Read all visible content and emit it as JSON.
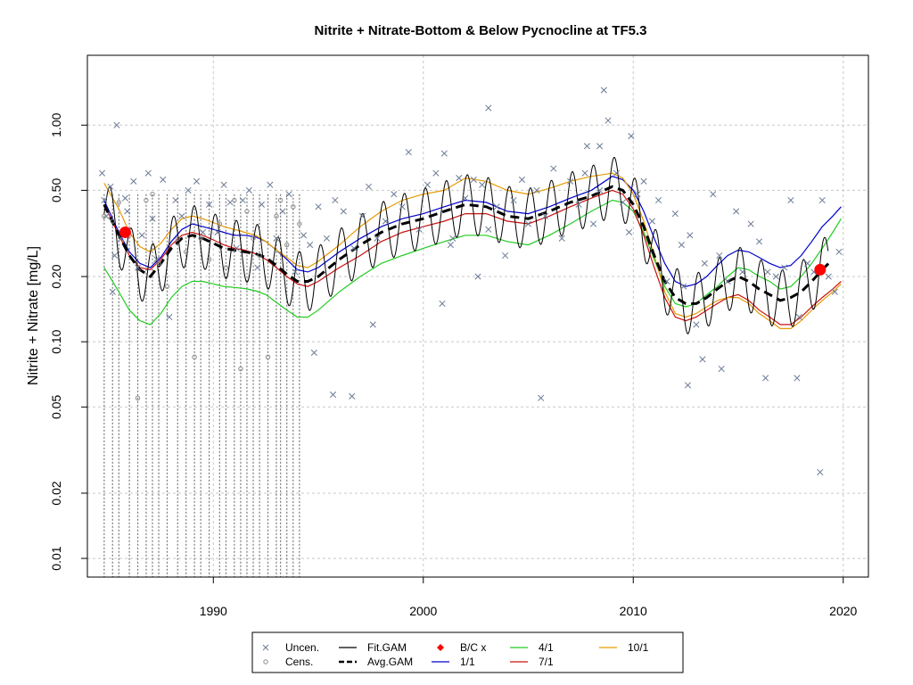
{
  "chart_data": {
    "type": "scatter",
    "title": "Nitrite + Nitrate-Bottom & Below Pycnocline at TF5.3",
    "xlabel": "",
    "ylabel": "Nitrite + Nitrate [mg/L]",
    "y_scale": "log",
    "xlim": [
      1984.0,
      2021.2
    ],
    "ylim": [
      0.0082,
      2.1
    ],
    "x_ticks": [
      1990,
      2000,
      2010,
      2020
    ],
    "x_tick_labels": [
      "1990",
      "2000",
      "2010",
      "2020"
    ],
    "y_ticks": [
      0.01,
      0.02,
      0.05,
      0.1,
      0.2,
      0.5,
      1.0
    ],
    "y_tick_labels": [
      "0.01",
      "0.02",
      "0.05",
      "0.10",
      "0.20",
      "0.50",
      "1.00"
    ],
    "grid": true,
    "legend_position": "bottom",
    "legend": [
      {
        "label": "Uncen.",
        "kind": "cross",
        "color": "#6a7a95"
      },
      {
        "label": "Cens.",
        "kind": "circle",
        "color": "#8a8a8a"
      },
      {
        "label": "Fit.GAM",
        "kind": "line",
        "color": "#000000"
      },
      {
        "label": "Avg.GAM",
        "kind": "dashed",
        "color": "#000000"
      },
      {
        "label": "B/C x",
        "kind": "diamond",
        "color": "#ff0000"
      },
      {
        "label": "1/1",
        "kind": "line",
        "color": "#0000cc"
      },
      {
        "label": "4/1",
        "kind": "line",
        "color": "#22cc22"
      },
      {
        "label": "7/1",
        "kind": "line",
        "color": "#cc1111"
      },
      {
        "label": "10/1",
        "kind": "line",
        "color": "#e69a00"
      }
    ],
    "colors": {
      "uncensored": "#6a7a95",
      "censored": "#8a8a8a",
      "fit_gam": "#000000",
      "avg_gam": "#000000",
      "bc": "#ff0000",
      "d1_1": "#0000cc",
      "d4_1": "#22cc22",
      "d7_1": "#cc1111",
      "d10_1": "#e69a00",
      "grid": "#c8c8c8"
    },
    "avg_gam": {
      "x": [
        1984.8,
        1985.5,
        1986,
        1986.5,
        1987,
        1987.5,
        1988,
        1988.5,
        1989,
        1989.5,
        1990,
        1990.5,
        1991,
        1991.5,
        1992,
        1992.5,
        1993,
        1993.5,
        1994,
        1994.5,
        1995,
        1996,
        1997,
        1998,
        1999,
        2000,
        2001,
        2002,
        2003,
        2004,
        2005,
        2006,
        2007,
        2008,
        2009,
        2009.5,
        2010,
        2010.5,
        2011,
        2011.5,
        2012,
        2012.5,
        2013,
        2013.5,
        2014,
        2014.5,
        2015,
        2015.5,
        2016,
        2016.5,
        2017,
        2017.5,
        2018,
        2018.5,
        2019,
        2019.3
      ],
      "y": [
        0.43,
        0.31,
        0.25,
        0.215,
        0.2,
        0.23,
        0.27,
        0.3,
        0.31,
        0.3,
        0.285,
        0.27,
        0.265,
        0.26,
        0.255,
        0.245,
        0.225,
        0.205,
        0.19,
        0.19,
        0.2,
        0.24,
        0.28,
        0.32,
        0.35,
        0.37,
        0.4,
        0.43,
        0.42,
        0.38,
        0.37,
        0.4,
        0.44,
        0.47,
        0.52,
        0.5,
        0.43,
        0.34,
        0.25,
        0.19,
        0.16,
        0.15,
        0.15,
        0.16,
        0.175,
        0.19,
        0.2,
        0.19,
        0.175,
        0.165,
        0.155,
        0.16,
        0.17,
        0.19,
        0.215,
        0.23
      ]
    },
    "seasonal_curves": [
      {
        "name": "1/1",
        "x": [
          1984.8,
          1985.5,
          1986,
          1986.5,
          1987,
          1987.5,
          1988,
          1988.5,
          1989,
          1989.5,
          1990,
          1990.5,
          1991,
          1991.5,
          1992,
          1992.5,
          1993,
          1993.5,
          1994,
          1994.5,
          1995,
          1996,
          1997,
          1998,
          1999,
          2000,
          2001,
          2002,
          2003,
          2004,
          2005,
          2006,
          2007,
          2008,
          2009,
          2009.5,
          2010,
          2010.5,
          2011,
          2011.5,
          2012,
          2012.5,
          2013,
          2013.5,
          2014,
          2014.5,
          2015,
          2015.5,
          2016,
          2016.5,
          2017,
          2017.5,
          2018,
          2018.5,
          2019,
          2019.5,
          2019.9
        ],
        "y": [
          0.45,
          0.32,
          0.26,
          0.23,
          0.22,
          0.245,
          0.29,
          0.33,
          0.35,
          0.34,
          0.33,
          0.32,
          0.31,
          0.31,
          0.305,
          0.29,
          0.265,
          0.24,
          0.215,
          0.21,
          0.22,
          0.26,
          0.3,
          0.34,
          0.37,
          0.39,
          0.42,
          0.45,
          0.44,
          0.4,
          0.39,
          0.42,
          0.46,
          0.5,
          0.58,
          0.56,
          0.5,
          0.4,
          0.3,
          0.23,
          0.19,
          0.18,
          0.185,
          0.2,
          0.225,
          0.25,
          0.265,
          0.26,
          0.245,
          0.23,
          0.22,
          0.225,
          0.25,
          0.29,
          0.34,
          0.38,
          0.42
        ]
      },
      {
        "name": "4/1",
        "x": [
          1984.8,
          1985.5,
          1986,
          1986.5,
          1987,
          1987.5,
          1988,
          1988.5,
          1989,
          1989.5,
          1990,
          1990.5,
          1991,
          1991.5,
          1992,
          1992.5,
          1993,
          1993.5,
          1994,
          1994.5,
          1995,
          1996,
          1997,
          1998,
          1999,
          2000,
          2001,
          2002,
          2003,
          2004,
          2005,
          2006,
          2007,
          2008,
          2009,
          2009.5,
          2010,
          2010.5,
          2011,
          2011.5,
          2012,
          2012.5,
          2013,
          2013.5,
          2014,
          2014.5,
          2015,
          2015.5,
          2016,
          2016.5,
          2017,
          2017.5,
          2018,
          2018.5,
          2019,
          2019.5,
          2019.9
        ],
        "y": [
          0.22,
          0.17,
          0.14,
          0.125,
          0.12,
          0.135,
          0.16,
          0.18,
          0.19,
          0.19,
          0.185,
          0.18,
          0.178,
          0.176,
          0.172,
          0.165,
          0.152,
          0.14,
          0.13,
          0.13,
          0.14,
          0.17,
          0.2,
          0.23,
          0.25,
          0.27,
          0.29,
          0.31,
          0.31,
          0.29,
          0.28,
          0.31,
          0.35,
          0.4,
          0.45,
          0.44,
          0.4,
          0.32,
          0.24,
          0.18,
          0.15,
          0.145,
          0.15,
          0.165,
          0.18,
          0.2,
          0.22,
          0.215,
          0.2,
          0.19,
          0.175,
          0.18,
          0.2,
          0.23,
          0.27,
          0.32,
          0.37
        ]
      },
      {
        "name": "7/1",
        "x": [
          1984.8,
          1985.5,
          1986,
          1986.5,
          1987,
          1987.5,
          1988,
          1988.5,
          1989,
          1989.5,
          1990,
          1990.5,
          1991,
          1991.5,
          1992,
          1992.5,
          1993,
          1993.5,
          1994,
          1994.5,
          1995,
          1996,
          1997,
          1998,
          1999,
          2000,
          2001,
          2002,
          2003,
          2004,
          2005,
          2006,
          2007,
          2008,
          2009,
          2009.5,
          2010,
          2010.5,
          2011,
          2011.5,
          2012,
          2012.5,
          2013,
          2013.5,
          2014,
          2014.5,
          2015,
          2015.5,
          2016,
          2016.5,
          2017,
          2017.5,
          2018,
          2018.5,
          2019,
          2019.5,
          2019.9
        ],
        "y": [
          0.43,
          0.31,
          0.25,
          0.22,
          0.215,
          0.24,
          0.28,
          0.31,
          0.32,
          0.31,
          0.295,
          0.28,
          0.27,
          0.265,
          0.255,
          0.24,
          0.22,
          0.2,
          0.185,
          0.18,
          0.19,
          0.22,
          0.25,
          0.29,
          0.32,
          0.34,
          0.36,
          0.39,
          0.39,
          0.36,
          0.35,
          0.38,
          0.42,
          0.46,
          0.5,
          0.48,
          0.41,
          0.31,
          0.22,
          0.16,
          0.13,
          0.125,
          0.13,
          0.14,
          0.15,
          0.16,
          0.165,
          0.155,
          0.14,
          0.13,
          0.12,
          0.12,
          0.13,
          0.145,
          0.16,
          0.175,
          0.19
        ]
      },
      {
        "name": "10/1",
        "x": [
          1984.8,
          1985.5,
          1986,
          1986.5,
          1987,
          1987.5,
          1988,
          1988.5,
          1989,
          1989.5,
          1990,
          1990.5,
          1991,
          1991.5,
          1992,
          1992.5,
          1993,
          1993.5,
          1994,
          1994.5,
          1995,
          1996,
          1997,
          1998,
          1999,
          2000,
          2001,
          2002,
          2003,
          2004,
          2005,
          2006,
          2007,
          2008,
          2009,
          2009.5,
          2010,
          2010.5,
          2011,
          2011.5,
          2012,
          2012.5,
          2013,
          2013.5,
          2014,
          2014.5,
          2015,
          2015.5,
          2016,
          2016.5,
          2017,
          2017.5,
          2018,
          2018.5,
          2019,
          2019.5,
          2019.9
        ],
        "y": [
          0.54,
          0.41,
          0.32,
          0.275,
          0.26,
          0.285,
          0.33,
          0.37,
          0.38,
          0.37,
          0.355,
          0.34,
          0.33,
          0.32,
          0.31,
          0.29,
          0.265,
          0.245,
          0.225,
          0.22,
          0.235,
          0.28,
          0.34,
          0.4,
          0.45,
          0.48,
          0.5,
          0.57,
          0.55,
          0.5,
          0.48,
          0.51,
          0.55,
          0.58,
          0.6,
          0.57,
          0.48,
          0.36,
          0.25,
          0.17,
          0.135,
          0.13,
          0.135,
          0.145,
          0.155,
          0.16,
          0.16,
          0.15,
          0.135,
          0.125,
          0.115,
          0.115,
          0.125,
          0.14,
          0.155,
          0.17,
          0.185
        ]
      }
    ],
    "bc_points": {
      "x": [
        1985.8,
        2018.9
      ],
      "y": [
        0.32,
        0.215
      ]
    },
    "uncensored": {
      "x": [
        1984.7,
        1984.8,
        1984.9,
        1985.1,
        1985.2,
        1985.3,
        1985.4,
        1985.6,
        1985.8,
        1985.9,
        1986.2,
        1986.4,
        1986.6,
        1986.9,
        1987.1,
        1987.3,
        1987.6,
        1987.9,
        1988.2,
        1988.5,
        1988.8,
        1989.2,
        1989.5,
        1989.8,
        1990.2,
        1990.5,
        1990.8,
        1991.1,
        1991.4,
        1991.7,
        1992.1,
        1992.3,
        1992.7,
        1993.0,
        1993.3,
        1993.6,
        1993.9,
        1994.3,
        1994.6,
        1995.0,
        1995.4,
        1995.8,
        1996.2,
        1996.7,
        1997.1,
        1997.4,
        1997.8,
        1998.2,
        1998.6,
        1999.0,
        1999.3,
        1999.8,
        2000.2,
        2000.6,
        2001.0,
        2001.3,
        2001.7,
        2002.0,
        2002.4,
        2002.8,
        2003.1,
        2003.5,
        2003.9,
        2004.3,
        2004.7,
        2005.0,
        2005.4,
        2005.8,
        2006.2,
        2006.6,
        2007.0,
        2007.4,
        2007.8,
        2008.1,
        2008.4,
        2008.8,
        2009.2,
        2009.5,
        2009.9,
        2010.2,
        2010.5,
        2010.9,
        2011.2,
        2011.6,
        2012.0,
        2012.3,
        2012.7,
        2013.0,
        2013.4,
        2013.8,
        2014.1,
        2014.5,
        2014.9,
        2015.2,
        2015.6,
        2016.0,
        2016.4,
        2016.8,
        2017.2,
        2017.5,
        2017.9,
        2018.3,
        2018.6,
        2019.0,
        2019.3,
        2019.6,
        2019.8,
        2012.6,
        2013.3,
        2014.2,
        2016.3,
        2017.8,
        2005.6,
        2000.9,
        2008.6,
        2018.9,
        1994.8,
        1995.7,
        1997.6,
        1996.6,
        2003.1,
        2012.4,
        2008.4,
        2009.8,
        2007.7,
        2002.6,
        2001.4
      ],
      "y": [
        0.6,
        0.45,
        0.38,
        0.52,
        0.17,
        0.25,
        1.0,
        0.3,
        0.46,
        0.4,
        0.55,
        0.22,
        0.31,
        0.6,
        0.37,
        0.24,
        0.56,
        0.13,
        0.45,
        0.38,
        0.5,
        0.55,
        0.32,
        0.43,
        0.32,
        0.53,
        0.44,
        0.27,
        0.45,
        0.5,
        0.22,
        0.43,
        0.53,
        0.3,
        0.4,
        0.48,
        0.21,
        0.31,
        0.28,
        0.42,
        0.3,
        0.45,
        0.4,
        0.27,
        0.38,
        0.52,
        0.3,
        0.36,
        0.48,
        0.42,
        0.75,
        0.33,
        0.53,
        0.6,
        0.74,
        0.28,
        0.57,
        0.46,
        0.56,
        0.53,
        0.33,
        0.42,
        0.25,
        0.45,
        0.56,
        0.35,
        0.5,
        0.38,
        0.63,
        0.3,
        0.55,
        0.43,
        0.8,
        0.35,
        0.5,
        1.05,
        0.6,
        0.44,
        0.89,
        0.48,
        0.55,
        0.36,
        0.45,
        0.19,
        0.39,
        0.28,
        0.31,
        0.12,
        0.23,
        0.48,
        0.25,
        0.19,
        0.4,
        0.21,
        0.35,
        0.29,
        0.21,
        0.2,
        0.22,
        0.45,
        0.13,
        0.23,
        0.21,
        0.45,
        0.2,
        0.17,
        0.26,
        0.063,
        0.083,
        0.075,
        0.068,
        0.068,
        0.055,
        0.15,
        1.45,
        0.025,
        0.089,
        0.057,
        0.12,
        0.056,
        1.2,
        0.18,
        0.8,
        0.32,
        0.6,
        0.2,
        0.3
      ]
    },
    "censored": {
      "x": [
        1984.8,
        1985.2,
        1985.5,
        1986.0,
        1986.4,
        1986.8,
        1987.1,
        1987.4,
        1987.8,
        1988.3,
        1988.7,
        1989.1,
        1989.4,
        1989.8,
        1990.3,
        1990.6,
        1991.0,
        1991.3,
        1991.6,
        1991.9,
        1992.2,
        1992.6,
        1993.0,
        1993.2,
        1993.5,
        1993.8,
        1994.1
      ],
      "y": [
        0.38,
        0.36,
        0.44,
        0.31,
        0.055,
        0.45,
        0.48,
        0.23,
        0.18,
        0.3,
        0.26,
        0.085,
        0.3,
        0.24,
        0.35,
        0.22,
        0.45,
        0.075,
        0.4,
        0.3,
        0.25,
        0.085,
        0.38,
        0.45,
        0.28,
        0.42,
        0.35
      ]
    },
    "censored_stems_x": [
      1984.8,
      1985.2,
      1985.5,
      1986.0,
      1986.4,
      1986.8,
      1987.1,
      1987.4,
      1987.8,
      1988.3,
      1988.7,
      1989.1,
      1989.4,
      1989.8,
      1990.3,
      1990.6,
      1991.0,
      1991.3,
      1991.6,
      1991.9,
      1992.2,
      1992.6,
      1993.0,
      1993.2,
      1993.5,
      1993.8,
      1994.1
    ],
    "fit_gam_amplitude_log": 0.32
  }
}
